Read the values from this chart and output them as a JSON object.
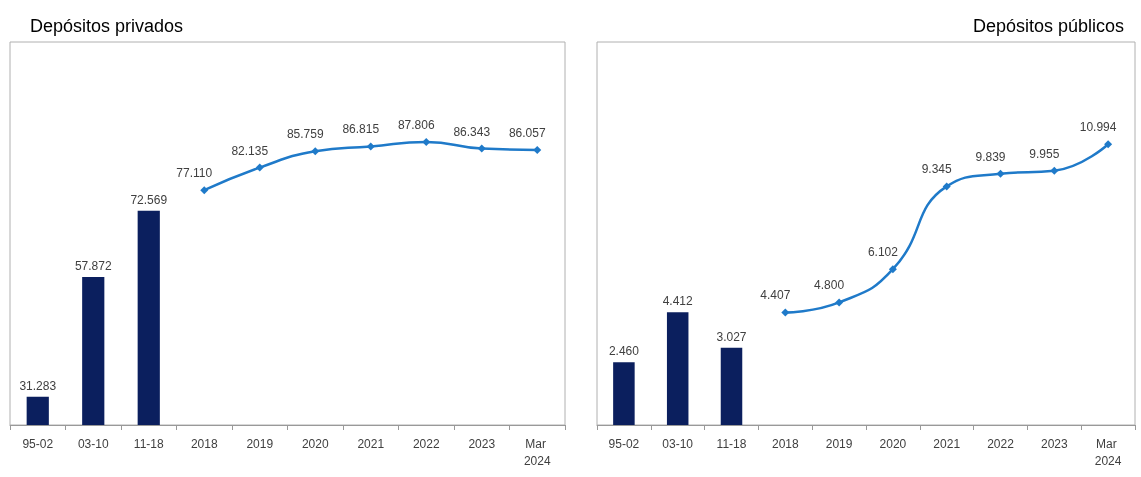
{
  "chart_data": [
    {
      "type": "bar",
      "title": "Depósitos privados",
      "categories": [
        "95-02",
        "03-10",
        "11-18",
        "2018",
        "2019",
        "2020",
        "2021",
        "2022",
        "2023",
        "Mar 2024"
      ],
      "ylim": [
        25,
        110
      ],
      "grid": false,
      "tick_labels": "x",
      "series": [
        {
          "color": "#0b1f5e",
          "values": [
            31.283,
            57.872,
            72.569,
            null,
            null,
            null,
            null,
            null,
            null,
            null
          ],
          "value_labels": [
            "31.283",
            "57.872",
            "72.569",
            null,
            null,
            null,
            null,
            null,
            null,
            null
          ]
        },
        {
          "type": "line",
          "color": "#1f7ac9",
          "marker": "diamond",
          "values": [
            null,
            null,
            null,
            77.11,
            82.135,
            85.759,
            86.815,
            87.806,
            86.343,
            86.057
          ],
          "value_labels": [
            null,
            null,
            null,
            "77.110",
            "82.135",
            "85.759",
            "86.815",
            "87.806",
            "86.343",
            "86.057"
          ]
        }
      ]
    },
    {
      "type": "bar",
      "title": "Depósitos públicos",
      "categories": [
        "95-02",
        "03-10",
        "11-18",
        "2018",
        "2019",
        "2020",
        "2021",
        "2022",
        "2023",
        "Mar 2024"
      ],
      "ylim": [
        0,
        15
      ],
      "grid": false,
      "tick_labels": "x",
      "series": [
        {
          "color": "#0b1f5e",
          "values": [
            2.46,
            4.412,
            3.027,
            null,
            null,
            null,
            null,
            null,
            null,
            null
          ],
          "value_labels": [
            "2.460",
            "4.412",
            "3.027",
            null,
            null,
            null,
            null,
            null,
            null,
            null
          ]
        },
        {
          "type": "line",
          "color": "#1f7ac9",
          "marker": "diamond",
          "values": [
            null,
            null,
            null,
            4.407,
            4.8,
            6.102,
            9.345,
            9.839,
            9.955,
            10.994
          ],
          "value_labels": [
            null,
            null,
            null,
            "4.407",
            "4.800",
            "6.102",
            "9.345",
            "9.839",
            "9.955",
            "10.994"
          ]
        }
      ]
    }
  ]
}
